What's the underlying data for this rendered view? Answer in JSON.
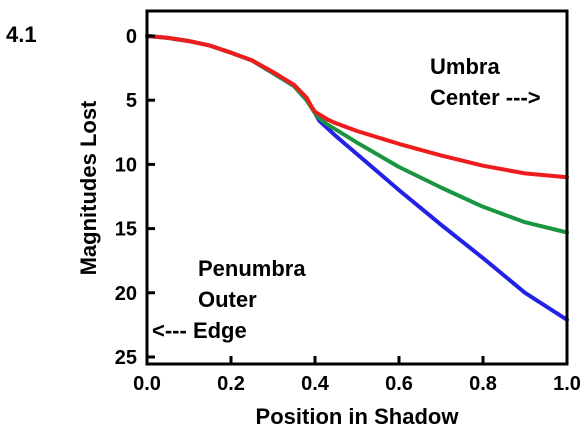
{
  "figure_label": "4.1",
  "chart_data": {
    "type": "line",
    "xlabel": "Position in Shadow",
    "ylabel": "Magnitudes Lost",
    "xlim": [
      0.0,
      1.0
    ],
    "ylim": [
      0,
      25
    ],
    "y_inverted": true,
    "x_ticks": [
      "0.0",
      "0.2",
      "0.4",
      "0.6",
      "0.8",
      "1.0"
    ],
    "y_ticks": [
      "0",
      "5",
      "10",
      "15",
      "20",
      "25"
    ],
    "grid": false,
    "annotations": {
      "umbra": [
        "Umbra",
        "Center --->"
      ],
      "penumbra": [
        "Penumbra",
        "Outer",
        "<--- Edge"
      ]
    },
    "series": [
      {
        "color": "#2222e6",
        "x": [
          0.0,
          0.05,
          0.1,
          0.15,
          0.2,
          0.25,
          0.3,
          0.35,
          0.38,
          0.4,
          0.41,
          0.43,
          0.45,
          0.5,
          0.6,
          0.7,
          0.8,
          0.9,
          1.0
        ],
        "y": [
          0.0,
          0.15,
          0.4,
          0.75,
          1.3,
          1.9,
          2.9,
          3.9,
          5.0,
          6.0,
          6.6,
          7.2,
          7.8,
          9.2,
          12.0,
          14.7,
          17.3,
          20.0,
          22.1
        ]
      },
      {
        "color": "#1a9641",
        "x": [
          0.0,
          0.05,
          0.1,
          0.15,
          0.2,
          0.25,
          0.3,
          0.35,
          0.38,
          0.4,
          0.41,
          0.43,
          0.45,
          0.5,
          0.6,
          0.7,
          0.8,
          0.9,
          1.0
        ],
        "y": [
          0.0,
          0.15,
          0.4,
          0.75,
          1.3,
          1.9,
          2.9,
          3.9,
          5.0,
          6.0,
          6.4,
          6.9,
          7.3,
          8.3,
          10.2,
          11.8,
          13.3,
          14.5,
          15.3
        ]
      },
      {
        "color": "#ee1c1c",
        "x": [
          0.0,
          0.05,
          0.1,
          0.15,
          0.2,
          0.25,
          0.3,
          0.35,
          0.38,
          0.39,
          0.4,
          0.41,
          0.43,
          0.45,
          0.5,
          0.6,
          0.7,
          0.8,
          0.9,
          1.0
        ],
        "y": [
          0.0,
          0.15,
          0.4,
          0.75,
          1.3,
          1.9,
          2.8,
          3.8,
          4.8,
          5.4,
          5.9,
          6.1,
          6.5,
          6.8,
          7.4,
          8.4,
          9.3,
          10.1,
          10.7,
          11.0
        ]
      }
    ]
  }
}
